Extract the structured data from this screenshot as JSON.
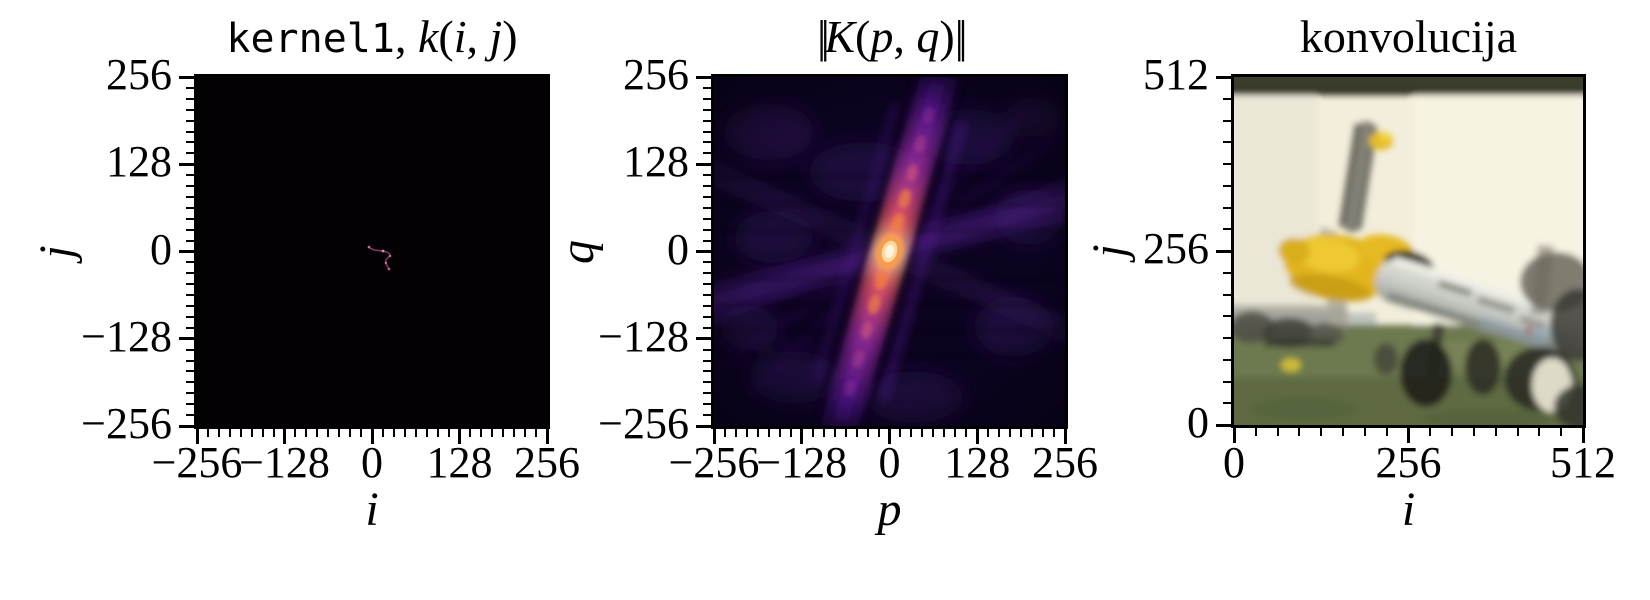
{
  "figure": {
    "background": "#ffffff"
  },
  "panels": [
    {
      "name": "kernel",
      "title": "kernel1, k(i, j)",
      "title_parts": [
        {
          "t": "kernel1",
          "f": "mono"
        },
        {
          "t": ", ",
          "f": "rm"
        },
        {
          "t": "k",
          "f": "it"
        },
        {
          "t": "(",
          "f": "rm"
        },
        {
          "t": "i",
          "f": "it"
        },
        {
          "t": ", ",
          "f": "rm"
        },
        {
          "t": "j",
          "f": "it"
        },
        {
          "t": ")",
          "f": "rm"
        }
      ],
      "xlabel": "i",
      "ylabel": "j",
      "xlim": [
        -256,
        256
      ],
      "ylim": [
        -256,
        256
      ],
      "xticks": [
        "−256",
        "−128",
        "0",
        "128",
        "256"
      ],
      "xtick_vals": [
        -256,
        -128,
        0,
        128,
        256
      ],
      "yticks": [
        "256",
        "128",
        "0",
        "−128",
        "−256"
      ],
      "ytick_vals": [
        256,
        128,
        0,
        -128,
        -256
      ],
      "minor_every": 16,
      "major_every": 128
    },
    {
      "name": "fft",
      "title": "||K(p, q)||",
      "title_parts": [
        {
          "t": "||",
          "f": "norm"
        },
        {
          "t": "K",
          "f": "it"
        },
        {
          "t": "(",
          "f": "rm"
        },
        {
          "t": "p",
          "f": "it"
        },
        {
          "t": ", ",
          "f": "rm"
        },
        {
          "t": "q",
          "f": "it"
        },
        {
          "t": ")",
          "f": "rm"
        },
        {
          "t": "||",
          "f": "norm"
        }
      ],
      "xlabel": "p",
      "ylabel": "q",
      "xlim": [
        -256,
        256
      ],
      "ylim": [
        -256,
        256
      ],
      "xticks": [
        "−256",
        "−128",
        "0",
        "128",
        "256"
      ],
      "xtick_vals": [
        -256,
        -128,
        0,
        128,
        256
      ],
      "yticks": [
        "256",
        "128",
        "0",
        "−128",
        "−256"
      ],
      "ytick_vals": [
        256,
        128,
        0,
        -128,
        -256
      ],
      "minor_every": 16,
      "major_every": 128
    },
    {
      "name": "konvolucija",
      "title": "konvolucija",
      "title_parts": [
        {
          "t": "konvolucija",
          "f": "rm"
        }
      ],
      "xlabel": "i",
      "ylabel": "j",
      "xlim": [
        0,
        512
      ],
      "ylim": [
        0,
        512
      ],
      "xticks": [
        "0",
        "256",
        "512"
      ],
      "xtick_vals": [
        0,
        256,
        512
      ],
      "yticks": [
        "512",
        "256",
        "0"
      ],
      "ytick_vals": [
        512,
        256,
        0
      ],
      "minor_every": 32,
      "major_every": 256
    }
  ],
  "chart_data": [
    {
      "type": "heatmap",
      "title": "kernel1, k(i, j)",
      "xlabel": "i",
      "ylabel": "j",
      "xlim": [
        -256,
        256
      ],
      "ylim": [
        -256,
        256
      ],
      "xticks": [
        -256,
        -128,
        0,
        128,
        256
      ],
      "yticks": [
        -256,
        -128,
        0,
        128,
        256
      ],
      "colormap": "inferno",
      "background_value": 0,
      "content": "sparse motion-blur trajectory kernel, faint magenta curve just right of origin",
      "trajectory_points": [
        [
          -6,
          6
        ],
        [
          3,
          1
        ],
        [
          16,
          0
        ],
        [
          26,
          -6
        ],
        [
          20,
          -15
        ],
        [
          23,
          -23
        ],
        [
          25,
          -28
        ]
      ]
    },
    {
      "type": "heatmap",
      "title": "||K(p, q)||",
      "xlabel": "p",
      "ylabel": "q",
      "xlim": [
        -256,
        256
      ],
      "ylim": [
        -256,
        256
      ],
      "xticks": [
        -256,
        -128,
        0,
        128,
        256
      ],
      "yticks": [
        -256,
        -128,
        0,
        128,
        256
      ],
      "colormap": "inferno",
      "content": "FFT magnitude of kernel1: bright beaded ridge through origin, peak white-yellow at (0,0), perpendicular sinc-like ripple fans and purple cloudy background",
      "peak": [
        0,
        0
      ],
      "ridge_endpoints": [
        [
          -66,
          -256
        ],
        [
          65,
          256
        ]
      ]
    },
    {
      "type": "image",
      "title": "konvolucija",
      "xlabel": "i",
      "ylabel": "j",
      "xlim": [
        0,
        512
      ],
      "ylim": [
        0,
        512
      ],
      "xticks": [
        0,
        256,
        512
      ],
      "yticks": [
        0,
        256,
        512
      ],
      "content": "photo of yellow-nosed propeller aircraft on grass motion-blurred by kernel1: cream sky, dark olive strip along top edge, blurred propeller blade above yellow cowling, dark canopy, silver fuselage sloping to lower right, dark landing gear and tail masses, green grass along bottom, white blob lower right"
    }
  ]
}
